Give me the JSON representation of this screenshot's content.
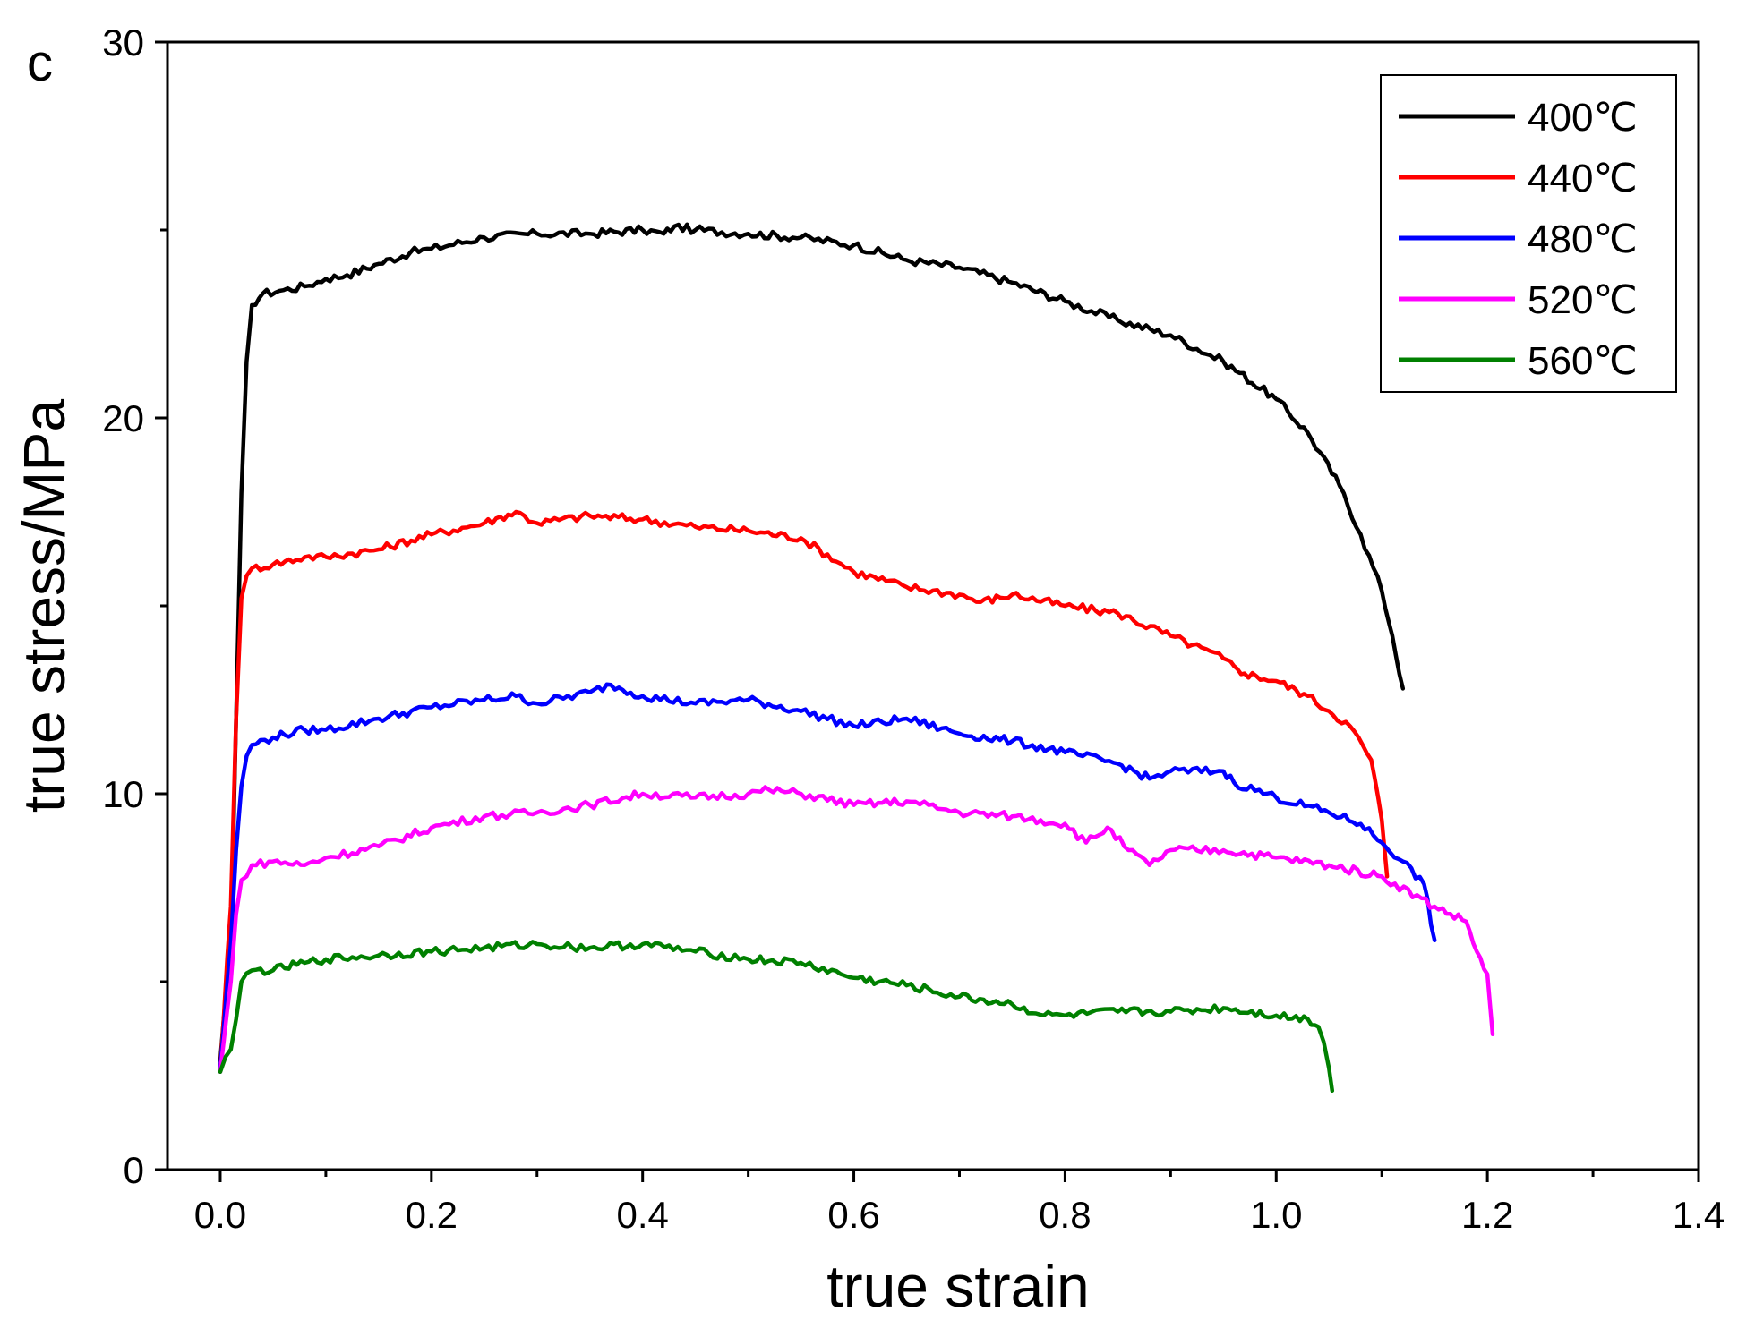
{
  "chart_data": {
    "type": "line",
    "panel_label": "c",
    "xlabel": "true strain",
    "ylabel": "true stress/MPa",
    "xlim": [
      -0.05,
      1.4
    ],
    "ylim": [
      0,
      30
    ],
    "x_ticks": [
      {
        "value": 0.0,
        "label": "0.0"
      },
      {
        "value": 0.2,
        "label": "0.2"
      },
      {
        "value": 0.4,
        "label": "0.4"
      },
      {
        "value": 0.6,
        "label": "0.6"
      },
      {
        "value": 0.8,
        "label": "0.8"
      },
      {
        "value": 1.0,
        "label": "1.0"
      },
      {
        "value": 1.2,
        "label": "1.2"
      },
      {
        "value": 1.4,
        "label": "1.4"
      }
    ],
    "y_ticks": [
      {
        "value": 0,
        "label": "0"
      },
      {
        "value": 10,
        "label": "10"
      },
      {
        "value": 20,
        "label": "20"
      },
      {
        "value": 30,
        "label": "30"
      }
    ],
    "y_minor_ticks": [
      5,
      15,
      25
    ],
    "grid": false,
    "legend_position": "top-right",
    "series": [
      {
        "name": "400℃",
        "color": "#000000",
        "x": [
          0.0,
          0.01,
          0.015,
          0.02,
          0.025,
          0.03,
          0.04,
          0.06,
          0.08,
          0.1,
          0.12,
          0.15,
          0.18,
          0.2,
          0.25,
          0.3,
          0.35,
          0.4,
          0.42,
          0.43,
          0.45,
          0.5,
          0.55,
          0.6,
          0.65,
          0.7,
          0.75,
          0.8,
          0.85,
          0.9,
          0.95,
          1.0,
          1.03,
          1.06,
          1.08,
          1.1,
          1.11,
          1.12
        ],
        "y": [
          2.9,
          6.0,
          12.0,
          18.0,
          21.5,
          23.0,
          23.3,
          23.4,
          23.5,
          23.7,
          23.8,
          24.1,
          24.4,
          24.5,
          24.8,
          24.9,
          24.9,
          25.0,
          24.9,
          25.1,
          25.0,
          24.9,
          24.8,
          24.6,
          24.2,
          24.0,
          23.6,
          23.1,
          22.6,
          22.2,
          21.5,
          20.5,
          19.6,
          18.2,
          16.9,
          15.4,
          14.2,
          12.8
        ]
      },
      {
        "name": "440℃",
        "color": "#ff0000",
        "x": [
          0.0,
          0.01,
          0.015,
          0.02,
          0.025,
          0.03,
          0.05,
          0.08,
          0.1,
          0.15,
          0.2,
          0.25,
          0.28,
          0.3,
          0.35,
          0.4,
          0.45,
          0.5,
          0.55,
          0.6,
          0.65,
          0.7,
          0.72,
          0.75,
          0.8,
          0.85,
          0.9,
          0.95,
          0.96,
          0.97,
          1.0,
          1.03,
          1.05,
          1.07,
          1.09,
          1.1,
          1.105
        ],
        "y": [
          2.7,
          7.0,
          12.0,
          15.2,
          15.8,
          16.0,
          16.1,
          16.3,
          16.3,
          16.5,
          16.9,
          17.2,
          17.5,
          17.2,
          17.4,
          17.3,
          17.1,
          17.0,
          16.8,
          15.9,
          15.5,
          15.3,
          15.1,
          15.3,
          15.0,
          14.8,
          14.2,
          13.6,
          13.4,
          13.2,
          13.0,
          12.6,
          12.2,
          11.8,
          10.9,
          9.3,
          7.8
        ]
      },
      {
        "name": "480℃",
        "color": "#0000ff",
        "x": [
          0.0,
          0.01,
          0.015,
          0.02,
          0.025,
          0.03,
          0.05,
          0.08,
          0.1,
          0.15,
          0.2,
          0.25,
          0.28,
          0.3,
          0.35,
          0.37,
          0.4,
          0.45,
          0.5,
          0.55,
          0.6,
          0.65,
          0.7,
          0.75,
          0.8,
          0.85,
          0.88,
          0.9,
          0.95,
          0.96,
          1.0,
          1.05,
          1.08,
          1.1,
          1.12,
          1.14,
          1.15
        ],
        "y": [
          2.7,
          6.0,
          8.5,
          10.2,
          11.0,
          11.3,
          11.5,
          11.7,
          11.7,
          12.0,
          12.3,
          12.5,
          12.6,
          12.4,
          12.7,
          12.9,
          12.6,
          12.4,
          12.5,
          12.2,
          11.8,
          12.0,
          11.6,
          11.4,
          11.1,
          10.8,
          10.4,
          10.6,
          10.6,
          10.3,
          9.9,
          9.5,
          9.2,
          8.7,
          8.2,
          7.6,
          6.1
        ]
      },
      {
        "name": "520℃",
        "color": "#ff00ff",
        "x": [
          0.0,
          0.01,
          0.015,
          0.02,
          0.03,
          0.05,
          0.08,
          0.1,
          0.15,
          0.2,
          0.25,
          0.3,
          0.35,
          0.4,
          0.45,
          0.5,
          0.52,
          0.55,
          0.6,
          0.65,
          0.7,
          0.75,
          0.8,
          0.82,
          0.84,
          0.86,
          0.88,
          0.9,
          0.95,
          1.0,
          1.05,
          1.1,
          1.15,
          1.18,
          1.19,
          1.2,
          1.205
        ],
        "y": [
          2.6,
          5.0,
          6.8,
          7.7,
          8.1,
          8.2,
          8.1,
          8.3,
          8.6,
          9.1,
          9.4,
          9.5,
          9.7,
          10.0,
          9.9,
          10.0,
          10.1,
          10.0,
          9.7,
          9.8,
          9.5,
          9.4,
          9.2,
          8.7,
          9.1,
          8.5,
          8.1,
          8.5,
          8.5,
          8.3,
          8.1,
          7.8,
          7.0,
          6.6,
          5.8,
          5.2,
          3.6
        ]
      },
      {
        "name": "560℃",
        "color": "#008000",
        "x": [
          0.0,
          0.005,
          0.01,
          0.015,
          0.02,
          0.03,
          0.05,
          0.08,
          0.1,
          0.15,
          0.2,
          0.25,
          0.3,
          0.35,
          0.4,
          0.45,
          0.5,
          0.55,
          0.6,
          0.65,
          0.7,
          0.75,
          0.78,
          0.8,
          0.85,
          0.9,
          0.95,
          1.0,
          1.03,
          1.04,
          1.045,
          1.05,
          1.053
        ],
        "y": [
          2.6,
          3.0,
          3.2,
          4.0,
          5.0,
          5.3,
          5.3,
          5.5,
          5.6,
          5.7,
          5.8,
          5.9,
          6.0,
          5.9,
          6.0,
          5.8,
          5.6,
          5.5,
          5.1,
          4.9,
          4.6,
          4.4,
          4.1,
          4.1,
          4.2,
          4.2,
          4.3,
          4.1,
          4.0,
          3.8,
          3.4,
          2.7,
          2.1
        ]
      }
    ]
  }
}
